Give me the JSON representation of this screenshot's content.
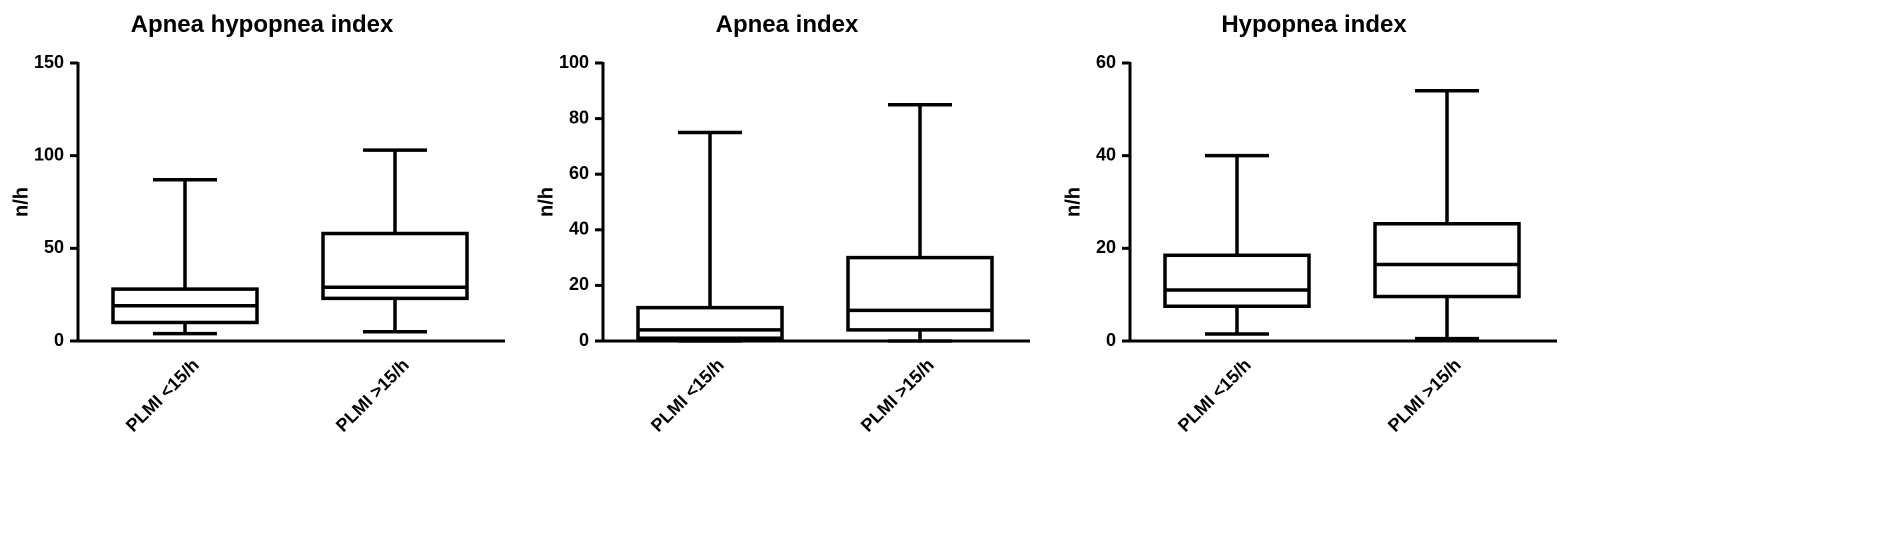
{
  "chart_data": [
    {
      "type": "box",
      "title": "Apnea hypopnea index",
      "ylabel": "n/h",
      "categories": [
        "PLMI <15/h",
        "PLMI >15/h"
      ],
      "stats": [
        {
          "min": 4,
          "q1": 10,
          "median": 19,
          "q3": 28,
          "max": 87
        },
        {
          "min": 5,
          "q1": 23,
          "median": 29,
          "q3": 58,
          "max": 103
        }
      ],
      "ylim": [
        0,
        150
      ],
      "yticks": [
        0,
        50,
        100,
        150
      ],
      "color": "#000000"
    },
    {
      "type": "box",
      "title": "Apnea index",
      "ylabel": "n/h",
      "categories": [
        "PLMI <15/h",
        "PLMI >15/h"
      ],
      "stats": [
        {
          "min": 0,
          "q1": 1,
          "median": 4,
          "q3": 12,
          "max": 75
        },
        {
          "min": 0,
          "q1": 4,
          "median": 11,
          "q3": 30,
          "max": 85
        }
      ],
      "ylim": [
        0,
        100
      ],
      "yticks": [
        0,
        20,
        40,
        60,
        80,
        100
      ],
      "color": "#000000"
    },
    {
      "type": "box",
      "title": "Hypopnea index",
      "ylabel": "n/h",
      "categories": [
        "PLMI <15/h",
        "PLMI >15/h"
      ],
      "stats": [
        {
          "min": 1.5,
          "q1": 7.5,
          "median": 11,
          "q3": 18.5,
          "max": 40
        },
        {
          "min": 0.5,
          "q1": 9.6,
          "median": 16.5,
          "q3": 25.3,
          "max": 54
        }
      ],
      "ylim": [
        0,
        60
      ],
      "yticks": [
        0,
        20,
        40,
        60
      ],
      "color": "#000000"
    }
  ]
}
